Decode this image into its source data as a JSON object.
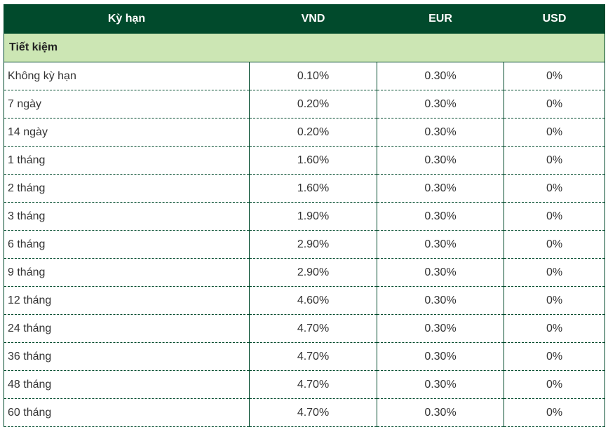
{
  "table": {
    "headers": {
      "term": "Kỳ hạn",
      "vnd": "VND",
      "eur": "EUR",
      "usd": "USD"
    },
    "section_label": "Tiết kiệm",
    "rows": [
      {
        "term": "Không kỳ hạn",
        "vnd": "0.10%",
        "eur": "0.30%",
        "usd": "0%"
      },
      {
        "term": "7 ngày",
        "vnd": "0.20%",
        "eur": "0.30%",
        "usd": "0%"
      },
      {
        "term": "14 ngày",
        "vnd": "0.20%",
        "eur": "0.30%",
        "usd": "0%"
      },
      {
        "term": "1 tháng",
        "vnd": "1.60%",
        "eur": "0.30%",
        "usd": "0%"
      },
      {
        "term": "2 tháng",
        "vnd": "1.60%",
        "eur": "0.30%",
        "usd": "0%"
      },
      {
        "term": "3 tháng",
        "vnd": "1.90%",
        "eur": "0.30%",
        "usd": "0%"
      },
      {
        "term": "6 tháng",
        "vnd": "2.90%",
        "eur": "0.30%",
        "usd": "0%"
      },
      {
        "term": "9 tháng",
        "vnd": "2.90%",
        "eur": "0.30%",
        "usd": "0%"
      },
      {
        "term": "12 tháng",
        "vnd": "4.60%",
        "eur": "0.30%",
        "usd": "0%"
      },
      {
        "term": "24 tháng",
        "vnd": "4.70%",
        "eur": "0.30%",
        "usd": "0%"
      },
      {
        "term": "36 tháng",
        "vnd": "4.70%",
        "eur": "0.30%",
        "usd": "0%"
      },
      {
        "term": "48 tháng",
        "vnd": "4.70%",
        "eur": "0.30%",
        "usd": "0%"
      },
      {
        "term": "60 tháng",
        "vnd": "4.70%",
        "eur": "0.30%",
        "usd": "0%"
      }
    ]
  },
  "colors": {
    "header_bg": "#014a2c",
    "header_text": "#ffffff",
    "section_bg": "#cce6b4",
    "border": "#014a2c",
    "body_text": "#333333"
  }
}
